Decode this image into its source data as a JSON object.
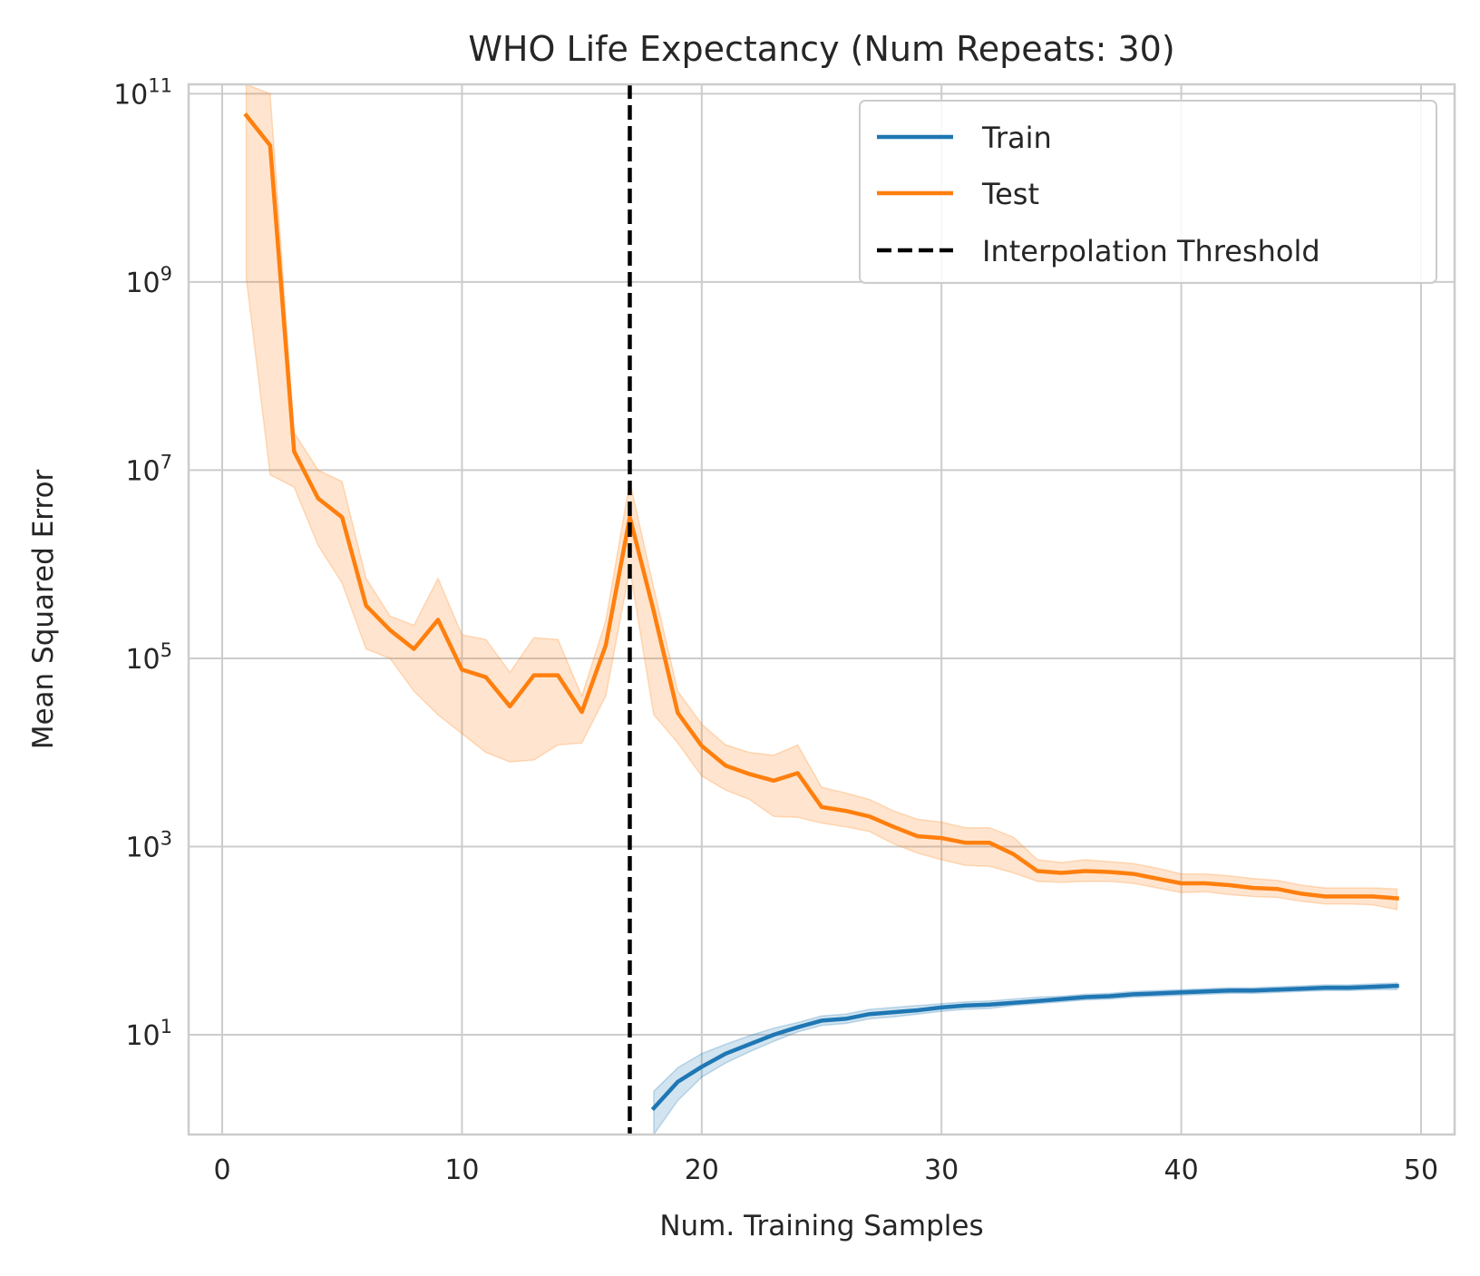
{
  "chart_data": {
    "type": "line",
    "title": "WHO Life Expectancy (Num Repeats: 30)",
    "xlabel": "Num. Training Samples",
    "ylabel": "Mean Squared Error",
    "yscale": "log",
    "xlim": [
      -1.4,
      51.4
    ],
    "ylim_log10": [
      -0.06,
      11.1
    ],
    "xticks": [
      0,
      10,
      20,
      30,
      40,
      50
    ],
    "xtick_labels": [
      "0",
      "10",
      "20",
      "30",
      "40",
      "50"
    ],
    "yticks_exponent": [
      1,
      3,
      5,
      7,
      9,
      11
    ],
    "ytick_base": "10",
    "grid": true,
    "legend_position": "top-right",
    "legend": [
      "Train",
      "Test",
      "Interpolation Threshold"
    ],
    "interpolation_threshold": 17,
    "colors": {
      "train": "#1f77b4",
      "test": "#ff7f0e",
      "threshold": "#000000",
      "grid": "#cccccc",
      "axes": "#cccccc"
    },
    "series": [
      {
        "name": "Train",
        "x": [
          18,
          19,
          20,
          21,
          22,
          23,
          24,
          25,
          26,
          27,
          28,
          29,
          30,
          31,
          32,
          33,
          34,
          35,
          36,
          37,
          38,
          39,
          40,
          41,
          42,
          43,
          44,
          45,
          46,
          47,
          48,
          49
        ],
        "log10_mean": [
          0.22,
          0.5,
          0.66,
          0.8,
          0.9,
          1.0,
          1.08,
          1.15,
          1.17,
          1.22,
          1.24,
          1.26,
          1.29,
          1.31,
          1.32,
          1.34,
          1.36,
          1.38,
          1.4,
          1.41,
          1.43,
          1.44,
          1.45,
          1.46,
          1.47,
          1.47,
          1.48,
          1.49,
          1.5,
          1.5,
          1.51,
          1.52
        ],
        "log10_lower": [
          -0.06,
          0.3,
          0.55,
          0.7,
          0.82,
          0.93,
          1.03,
          1.1,
          1.12,
          1.17,
          1.19,
          1.22,
          1.25,
          1.27,
          1.28,
          1.31,
          1.33,
          1.35,
          1.37,
          1.38,
          1.4,
          1.41,
          1.42,
          1.43,
          1.44,
          1.44,
          1.45,
          1.46,
          1.47,
          1.47,
          1.48,
          1.48
        ],
        "log10_upper": [
          0.4,
          0.65,
          0.8,
          0.9,
          0.99,
          1.07,
          1.13,
          1.2,
          1.22,
          1.27,
          1.29,
          1.31,
          1.33,
          1.35,
          1.36,
          1.38,
          1.4,
          1.41,
          1.43,
          1.44,
          1.46,
          1.47,
          1.48,
          1.49,
          1.5,
          1.5,
          1.51,
          1.52,
          1.53,
          1.53,
          1.54,
          1.55
        ]
      },
      {
        "name": "Test",
        "x": [
          1,
          2,
          3,
          4,
          5,
          6,
          7,
          8,
          9,
          10,
          11,
          12,
          13,
          14,
          15,
          16,
          17,
          18,
          19,
          20,
          21,
          22,
          23,
          24,
          25,
          26,
          27,
          28,
          29,
          30,
          31,
          32,
          33,
          34,
          35,
          36,
          37,
          38,
          39,
          40,
          41,
          42,
          43,
          44,
          45,
          46,
          47,
          48,
          49
        ],
        "log10_mean": [
          10.77,
          10.45,
          7.2,
          6.7,
          6.5,
          5.56,
          5.3,
          5.1,
          5.41,
          4.88,
          4.8,
          4.49,
          4.82,
          4.82,
          4.43,
          5.14,
          6.5,
          5.5,
          4.42,
          4.07,
          3.86,
          3.77,
          3.7,
          3.78,
          3.42,
          3.38,
          3.32,
          3.21,
          3.11,
          3.09,
          3.04,
          3.04,
          2.92,
          2.74,
          2.72,
          2.74,
          2.73,
          2.71,
          2.66,
          2.61,
          2.61,
          2.59,
          2.56,
          2.55,
          2.5,
          2.47,
          2.47,
          2.47,
          2.45
        ],
        "log10_lower": [
          9.05,
          6.95,
          6.82,
          6.2,
          5.8,
          5.1,
          5.0,
          4.65,
          4.4,
          4.2,
          4.0,
          3.9,
          3.92,
          4.08,
          4.1,
          4.6,
          5.95,
          4.4,
          4.1,
          3.75,
          3.6,
          3.5,
          3.32,
          3.31,
          3.25,
          3.21,
          3.16,
          3.03,
          2.93,
          2.86,
          2.8,
          2.79,
          2.72,
          2.63,
          2.62,
          2.63,
          2.63,
          2.61,
          2.56,
          2.51,
          2.52,
          2.49,
          2.47,
          2.46,
          2.42,
          2.39,
          2.39,
          2.38,
          2.33
        ],
        "log10_upper": [
          11.1,
          11.0,
          7.4,
          7.0,
          6.88,
          5.85,
          5.45,
          5.35,
          5.85,
          5.25,
          5.2,
          4.85,
          5.22,
          5.2,
          4.6,
          5.4,
          6.88,
          5.75,
          4.65,
          4.3,
          4.08,
          4.0,
          3.97,
          4.08,
          3.63,
          3.57,
          3.5,
          3.38,
          3.29,
          3.26,
          3.2,
          3.2,
          3.1,
          2.86,
          2.83,
          2.86,
          2.84,
          2.82,
          2.77,
          2.71,
          2.71,
          2.69,
          2.66,
          2.64,
          2.59,
          2.56,
          2.56,
          2.56,
          2.55
        ]
      }
    ]
  }
}
